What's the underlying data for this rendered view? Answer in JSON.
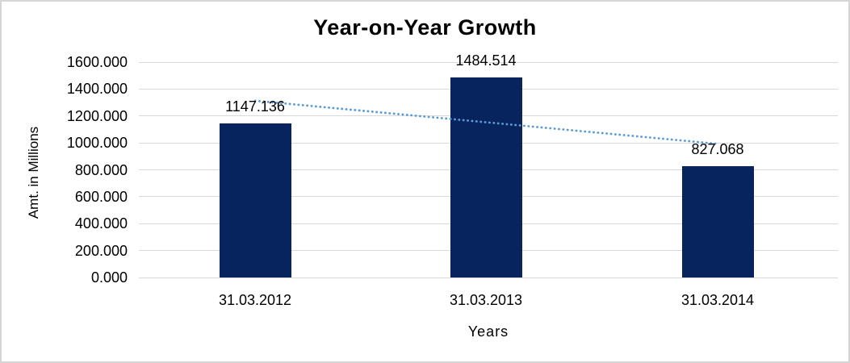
{
  "window": {
    "background_color": "#ffffff",
    "border_color": "#d5d5d5"
  },
  "chart_data": {
    "type": "bar",
    "title": "Year-on-Year Growth",
    "xlabel": "Years",
    "ylabel": "Amt. in Millions",
    "categories": [
      "31.03.2012",
      "31.03.2013",
      "31.03.2014"
    ],
    "values": [
      1147.136,
      1484.514,
      827.068
    ],
    "data_labels": [
      "1147.136",
      "1484.514",
      "827.068"
    ],
    "ylim": [
      0,
      1600
    ],
    "ytick_step": 200,
    "ytick_labels": [
      "0.000",
      "200.000",
      "400.000",
      "600.000",
      "800.000",
      "1000.000",
      "1200.000",
      "1400.000",
      "1600.000"
    ],
    "grid": true,
    "legend_position": "none",
    "bar_color": "#08245e",
    "gridline_color": "#d9d9d9",
    "trendline": {
      "kind": "linear",
      "style": "dotted",
      "color": "#5b9bd5"
    }
  }
}
